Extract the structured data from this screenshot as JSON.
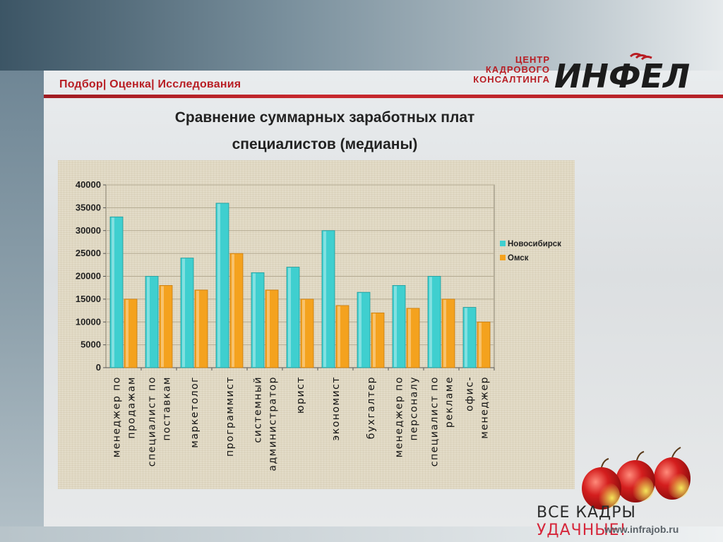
{
  "header": {
    "tagline": "Подбор| Оценка| Исследования",
    "logo_lines": [
      "ЦЕНТР",
      "КАДРОВОГО",
      "КОНСАЛТИНГА"
    ],
    "logo_word": "ИНФЕЛ"
  },
  "title_lines": [
    "Сравнение суммарных заработных плат",
    "специалистов (медианы)"
  ],
  "footer": {
    "slogan_a": "ВСЕ КАДРЫ ",
    "slogan_b": "УДАЧНЫЕ!",
    "site": "www.infrajob.ru"
  },
  "colors": {
    "accent": "#b81e24",
    "novosibirsk": "#3fcfcf",
    "omsk": "#f4a21e"
  },
  "chart_data": {
    "type": "bar",
    "title": "",
    "xlabel": "",
    "ylabel": "",
    "ylim": [
      0,
      40000
    ],
    "yticks": [
      0,
      5000,
      10000,
      15000,
      20000,
      25000,
      30000,
      35000,
      40000
    ],
    "grid": true,
    "legend_position": "right",
    "categories": [
      [
        "менеджер по",
        "продажам"
      ],
      [
        "специалист по",
        "поставкам"
      ],
      [
        "маркетолог"
      ],
      [
        "программист"
      ],
      [
        "системный",
        "администратор"
      ],
      [
        "юрист"
      ],
      [
        "экономист"
      ],
      [
        "бухгалтер"
      ],
      [
        "менеджер по",
        "персоналу"
      ],
      [
        "специалист по",
        "рекламе"
      ],
      [
        "офис-",
        "менеджер"
      ]
    ],
    "series": [
      {
        "name": "Новосибирск",
        "color": "#3fcfcf",
        "values": [
          33000,
          20000,
          24000,
          36000,
          20800,
          22000,
          30000,
          16500,
          18000,
          20000,
          13200
        ]
      },
      {
        "name": "Омск",
        "color": "#f4a21e",
        "values": [
          15000,
          18000,
          17000,
          25000,
          17000,
          15000,
          13600,
          12000,
          13000,
          15000,
          10000
        ]
      }
    ]
  }
}
